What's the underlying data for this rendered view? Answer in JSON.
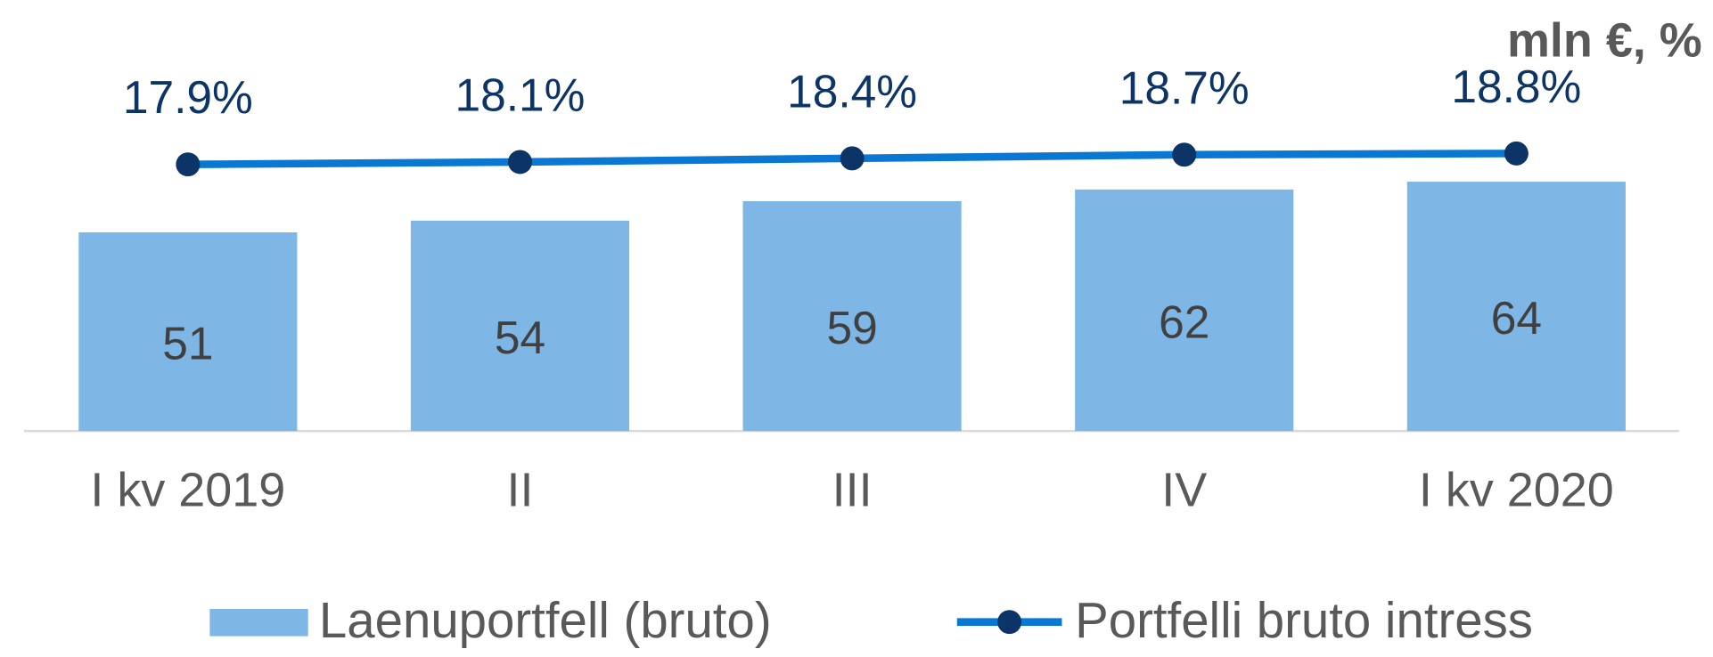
{
  "chart_data": {
    "type": "bar",
    "ylabel": "mln €, %",
    "categories": [
      "I kv 2019",
      "II",
      "III",
      "IV",
      "I kv 2020"
    ],
    "series": [
      {
        "name": "Laenuportfell (bruto)",
        "type": "bar",
        "color": "#7eb6e6",
        "values": [
          51,
          54,
          59,
          62,
          64
        ]
      },
      {
        "name": "Portfelli bruto intress",
        "type": "line",
        "axis": "y2",
        "color": "#0a78d2",
        "marker_color": "#0d3466",
        "values": [
          17.9,
          18.1,
          18.4,
          18.7,
          18.8
        ],
        "value_labels": [
          "17.9%",
          "18.1%",
          "18.4%",
          "18.7%",
          "18.8%"
        ]
      }
    ],
    "ylim": [
      0,
      100
    ],
    "y2lim": [
      -4,
      28
    ],
    "grid": false,
    "legend": "bottom"
  }
}
